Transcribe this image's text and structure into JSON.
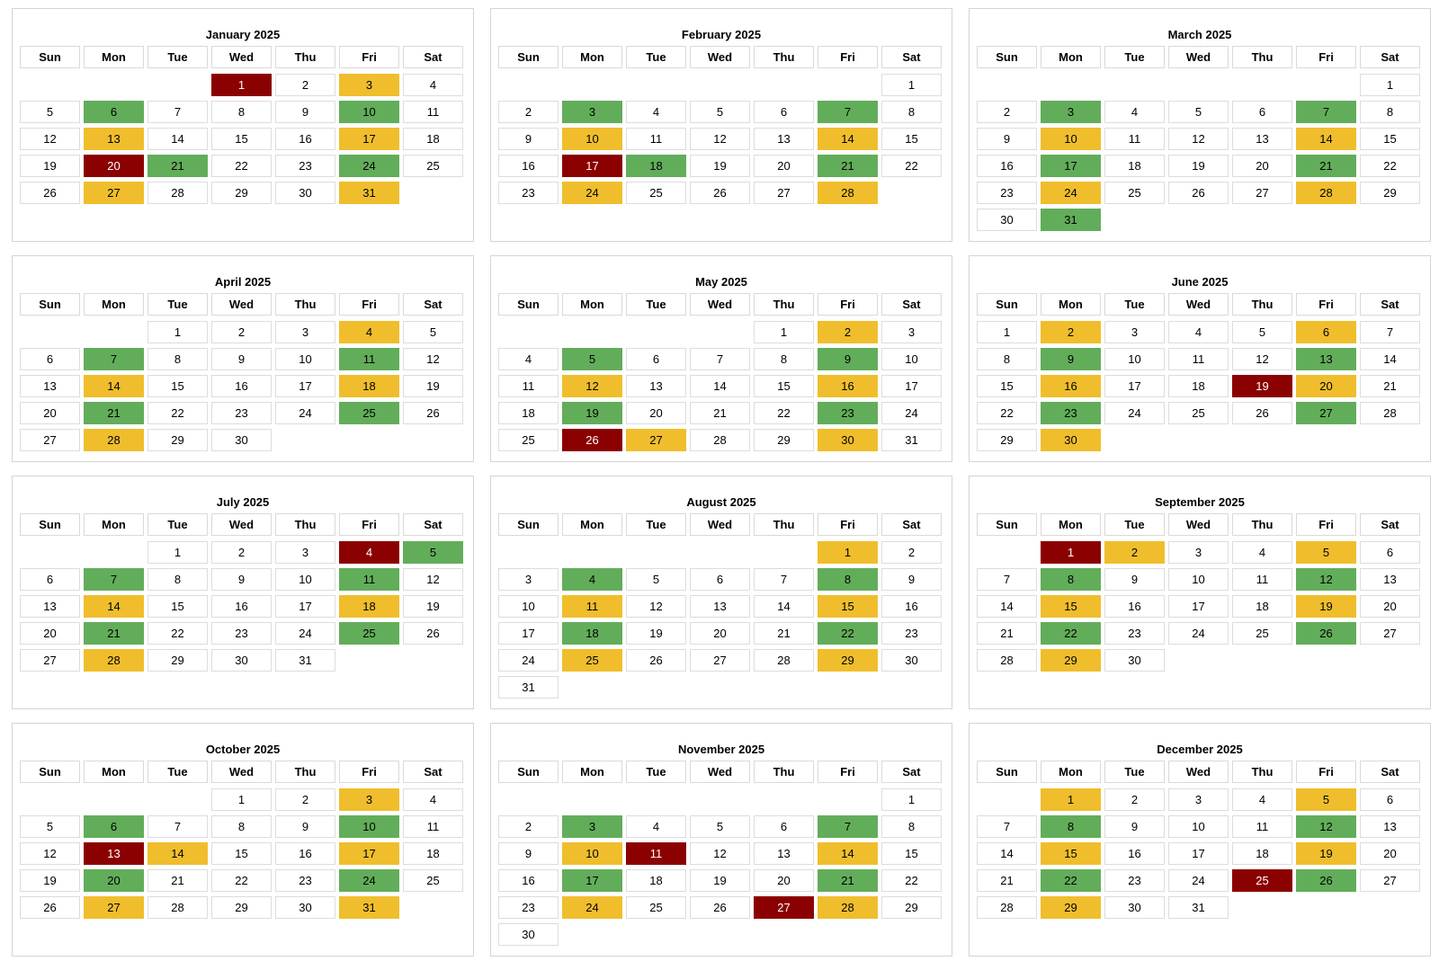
{
  "colors": {
    "green": "#62ad5a",
    "yellow": "#f0be2c",
    "red": "#8b0000"
  },
  "weekdays": [
    "Sun",
    "Mon",
    "Tue",
    "Wed",
    "Thu",
    "Fri",
    "Sat"
  ],
  "months": [
    {
      "title": "January 2025",
      "start_weekday": 3,
      "days": 31,
      "green": [
        6,
        10,
        21,
        24
      ],
      "yellow": [
        3,
        13,
        17,
        27,
        31
      ],
      "red": [
        1,
        20
      ]
    },
    {
      "title": "February 2025",
      "start_weekday": 6,
      "days": 28,
      "green": [
        3,
        7,
        18,
        21
      ],
      "yellow": [
        10,
        14,
        24,
        28
      ],
      "red": [
        17
      ]
    },
    {
      "title": "March 2025",
      "start_weekday": 6,
      "days": 31,
      "green": [
        3,
        7,
        17,
        21,
        31
      ],
      "yellow": [
        10,
        14,
        24,
        28
      ],
      "red": []
    },
    {
      "title": "April 2025",
      "start_weekday": 2,
      "days": 30,
      "green": [
        7,
        11,
        21,
        25
      ],
      "yellow": [
        4,
        14,
        18,
        28
      ],
      "red": []
    },
    {
      "title": "May 2025",
      "start_weekday": 4,
      "days": 31,
      "green": [
        5,
        9,
        19,
        23
      ],
      "yellow": [
        2,
        12,
        16,
        27,
        30
      ],
      "red": [
        26
      ]
    },
    {
      "title": "June 2025",
      "start_weekday": 0,
      "days": 30,
      "green": [
        9,
        13,
        23,
        27
      ],
      "yellow": [
        2,
        6,
        16,
        20,
        30
      ],
      "red": [
        19
      ]
    },
    {
      "title": "July 2025",
      "start_weekday": 2,
      "days": 31,
      "green": [
        5,
        7,
        11,
        21,
        25
      ],
      "yellow": [
        14,
        18,
        28
      ],
      "red": [
        4
      ]
    },
    {
      "title": "August 2025",
      "start_weekday": 5,
      "days": 31,
      "green": [
        4,
        8,
        18,
        22
      ],
      "yellow": [
        1,
        11,
        15,
        25,
        29
      ],
      "red": []
    },
    {
      "title": "September 2025",
      "start_weekday": 1,
      "days": 30,
      "green": [
        8,
        12,
        22,
        26
      ],
      "yellow": [
        2,
        5,
        15,
        19,
        29
      ],
      "red": [
        1
      ]
    },
    {
      "title": "October 2025",
      "start_weekday": 3,
      "days": 31,
      "green": [
        6,
        10,
        20,
        24
      ],
      "yellow": [
        3,
        14,
        17,
        27,
        31
      ],
      "red": [
        13
      ]
    },
    {
      "title": "November 2025",
      "start_weekday": 6,
      "days": 30,
      "green": [
        3,
        7,
        17,
        21
      ],
      "yellow": [
        10,
        14,
        24,
        28
      ],
      "red": [
        11,
        27
      ]
    },
    {
      "title": "December 2025",
      "start_weekday": 1,
      "days": 31,
      "green": [
        8,
        12,
        22,
        26
      ],
      "yellow": [
        1,
        5,
        15,
        19,
        29
      ],
      "red": [
        25
      ]
    }
  ]
}
